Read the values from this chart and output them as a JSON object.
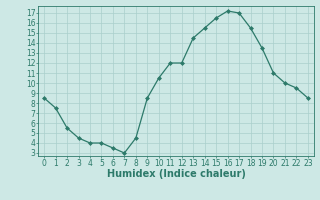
{
  "x": [
    0,
    1,
    2,
    3,
    4,
    5,
    6,
    7,
    8,
    9,
    10,
    11,
    12,
    13,
    14,
    15,
    16,
    17,
    18,
    19,
    20,
    21,
    22,
    23
  ],
  "y": [
    8.5,
    7.5,
    5.5,
    4.5,
    4.0,
    4.0,
    3.5,
    3.0,
    4.5,
    8.5,
    10.5,
    12.0,
    12.0,
    14.5,
    15.5,
    16.5,
    17.2,
    17.0,
    15.5,
    13.5,
    11.0,
    10.0,
    9.5,
    8.5
  ],
  "xlabel": "Humidex (Indice chaleur)",
  "ylabel": "",
  "xlim": [
    -0.5,
    23.5
  ],
  "ylim": [
    2.7,
    17.7
  ],
  "yticks": [
    3,
    4,
    5,
    6,
    7,
    8,
    9,
    10,
    11,
    12,
    13,
    14,
    15,
    16,
    17
  ],
  "xticks": [
    0,
    1,
    2,
    3,
    4,
    5,
    6,
    7,
    8,
    9,
    10,
    11,
    12,
    13,
    14,
    15,
    16,
    17,
    18,
    19,
    20,
    21,
    22,
    23
  ],
  "line_color": "#2d7a6a",
  "marker": "D",
  "marker_size": 2.0,
  "bg_color": "#cde8e5",
  "grid_color": "#aacfcc",
  "tick_label_fontsize": 5.5,
  "xlabel_fontsize": 7.0,
  "linewidth": 0.9
}
